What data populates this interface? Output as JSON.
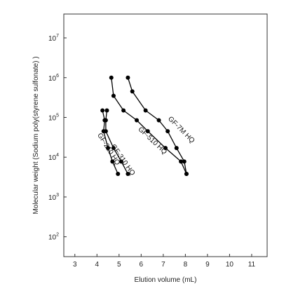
{
  "chart_data": {
    "type": "line",
    "title": "",
    "xlabel": "Elution volume (mL)",
    "ylabel": "Molecular weight (Sodium poly(styrene sulfonate) )",
    "xlim": [
      2.5,
      11.7
    ],
    "ylim_log10": [
      1.5,
      7.6
    ],
    "log_y": true,
    "grid": false,
    "legend": "none (series labels placed along curves)",
    "x_ticks": [
      "3",
      "4",
      "5",
      "6",
      "7",
      "8",
      "9",
      "10",
      "11"
    ],
    "y_ticks": [
      {
        "base": "10",
        "exp": "7"
      },
      {
        "base": "10",
        "exp": "6"
      },
      {
        "base": "10",
        "exp": "5"
      },
      {
        "base": "10",
        "exp": "4"
      },
      {
        "base": "10",
        "exp": "3"
      },
      {
        "base": "10",
        "exp": "2"
      }
    ],
    "marker_color": "#000000",
    "line_color": "#000000",
    "series": [
      {
        "name": "GF-210 HQ",
        "points": [
          [
            4.25,
            150000
          ],
          [
            4.35,
            85000
          ],
          [
            4.3,
            45000
          ],
          [
            4.5,
            17000
          ],
          [
            4.7,
            7800
          ],
          [
            4.95,
            3800
          ]
        ]
      },
      {
        "name": "GF-310 HQ",
        "points": [
          [
            4.45,
            150000
          ],
          [
            4.4,
            85000
          ],
          [
            4.4,
            45000
          ],
          [
            4.75,
            17000
          ],
          [
            5.1,
            7800
          ],
          [
            5.4,
            3800
          ]
        ]
      },
      {
        "name": "GF-510 HQ",
        "points": [
          [
            4.65,
            1000000
          ],
          [
            4.75,
            350000
          ],
          [
            5.2,
            150000
          ],
          [
            5.8,
            85000
          ],
          [
            6.3,
            45000
          ],
          [
            7.1,
            17000
          ],
          [
            7.8,
            7800
          ],
          [
            8.05,
            3800
          ]
        ]
      },
      {
        "name": "GF-7M HQ",
        "points": [
          [
            5.4,
            1000000
          ],
          [
            5.6,
            450000
          ],
          [
            6.2,
            150000
          ],
          [
            6.8,
            85000
          ],
          [
            7.2,
            45000
          ],
          [
            7.6,
            17000
          ],
          [
            7.95,
            7800
          ],
          [
            8.05,
            3800
          ]
        ]
      }
    ],
    "series_labels": [
      {
        "text": "GF-210 HQ",
        "at": [
          4.45,
          15000
        ],
        "angle": 58
      },
      {
        "text": "GF-310 HQ",
        "at": [
          5.1,
          8000
        ],
        "angle": 55
      },
      {
        "text": "GF-510 HQ",
        "at": [
          6.45,
          24000
        ],
        "angle": 43
      },
      {
        "text": "GF-7M HQ",
        "at": [
          7.75,
          45000
        ],
        "angle": 45
      }
    ]
  }
}
